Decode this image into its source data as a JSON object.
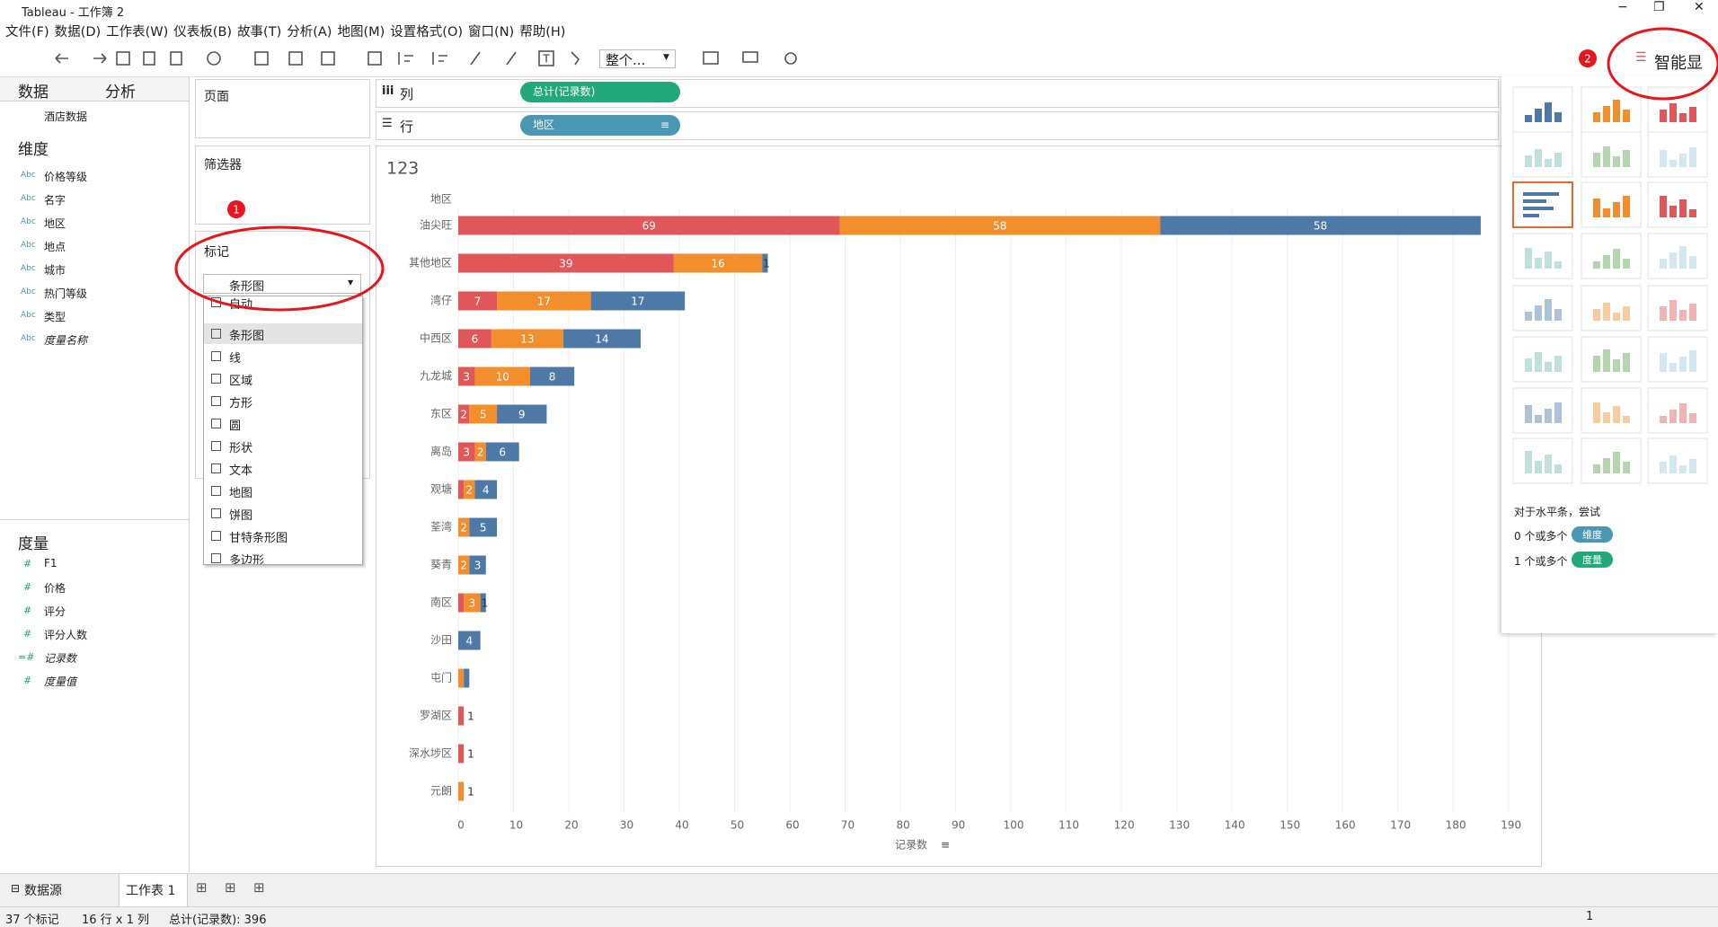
{
  "window_title": "Tableau - 工作簿 2",
  "menu": [
    "文件(F)",
    "数据(D)",
    "工作表(W)",
    "仪表板(B)",
    "故事(T)",
    "分析(A)",
    "地图(M)",
    "设置格式(O)",
    "窗口(N)",
    "帮助(H)"
  ],
  "toolbar": {
    "fit": "整个..."
  },
  "data_pane": {
    "tabs": [
      "数据",
      "分析"
    ],
    "source": "酒店数据",
    "dimensions_title": "维度",
    "dimensions": [
      {
        "icon": "Abc",
        "name": "价格等级"
      },
      {
        "icon": "Abc",
        "name": "名字"
      },
      {
        "icon": "Abc",
        "name": "地区"
      },
      {
        "icon": "Abc",
        "name": "地点"
      },
      {
        "icon": "Abc",
        "name": "城市"
      },
      {
        "icon": "Abc",
        "name": "热门等级"
      },
      {
        "icon": "Abc",
        "name": "类型"
      },
      {
        "icon": "Abc",
        "name": "度量名称"
      }
    ],
    "measures_title": "度量",
    "measures": [
      {
        "icon": "#",
        "name": "F1"
      },
      {
        "icon": "#",
        "name": "价格"
      },
      {
        "icon": "#",
        "name": "评分"
      },
      {
        "icon": "#",
        "name": "评分人数"
      },
      {
        "icon": "=#",
        "name": "记录数"
      },
      {
        "icon": "#",
        "name": "度量值"
      }
    ]
  },
  "shelves": {
    "pages": "页面",
    "filters": "筛选器",
    "marks": "标记",
    "mark_type": "条形图",
    "mark_types": [
      "自动",
      "条形图",
      "线",
      "区域",
      "方形",
      "圆",
      "形状",
      "文本",
      "地图",
      "饼图",
      "甘特条形图",
      "多边形"
    ],
    "columns": "列",
    "columns_pill": "总计(记录数)",
    "rows": "行",
    "rows_pill": "地区"
  },
  "show_me": {
    "title": "智能显",
    "hint": "对于水平条，尝试",
    "requirements": [
      {
        "text": "0 个或多个",
        "pill": "维度"
      },
      {
        "text": "1 个或多个",
        "pill": "度量"
      }
    ]
  },
  "annotations": [
    "1",
    "2"
  ],
  "sheet_tabs": [
    "数据源",
    "工作表 1"
  ],
  "status": {
    "marks": "37 个标记",
    "dims": "16 行 x 1 列",
    "sum": "总计(记录数): 396",
    "page": "1"
  },
  "chart_data": {
    "type": "bar",
    "orientation": "horizontal",
    "stacked": true,
    "title": "123",
    "y_label": "地区",
    "x_label": "记录数",
    "categories": [
      "油尖旺",
      "其他地区",
      "湾仔",
      "中西区",
      "九龙城",
      "东区",
      "离岛",
      "观塘",
      "荃湾",
      "葵青",
      "南区",
      "沙田",
      "屯门",
      "罗湖区",
      "深水埗区",
      "元朗"
    ],
    "series": [
      {
        "color": "#e15759",
        "values": [
          69,
          39,
          7,
          6,
          3,
          2,
          3,
          1,
          0,
          0,
          1,
          0,
          0,
          1,
          1,
          0
        ]
      },
      {
        "color": "#f28e2b",
        "values": [
          58,
          16,
          17,
          13,
          10,
          5,
          2,
          2,
          2,
          2,
          3,
          0,
          1,
          0,
          0,
          1
        ]
      },
      {
        "color": "#4e79a7",
        "values": [
          58,
          1,
          17,
          14,
          8,
          9,
          6,
          4,
          5,
          3,
          1,
          4,
          1,
          0,
          0,
          0
        ]
      }
    ],
    "xlim": [
      0,
      192
    ],
    "xticks": [
      0,
      10,
      20,
      30,
      40,
      50,
      60,
      70,
      80,
      90,
      100,
      110,
      120,
      130,
      140,
      150,
      160,
      170,
      180,
      190
    ],
    "grid": true
  }
}
